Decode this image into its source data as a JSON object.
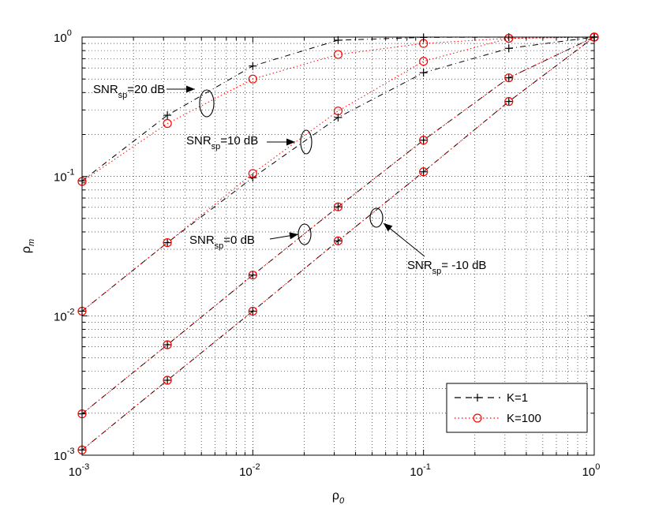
{
  "chart_data": {
    "type": "line",
    "xscale": "log",
    "yscale": "log",
    "xlim": [
      0.001,
      1
    ],
    "ylim": [
      0.001,
      1
    ],
    "grid": true,
    "xlabel": "ρ0",
    "xlabel_base": "ρ",
    "xlabel_sub": "0",
    "ylabel": "ρm",
    "ylabel_base": "ρ",
    "ylabel_sub": "m",
    "xtick_values": [
      0.001,
      0.01,
      0.1,
      1
    ],
    "xtick_labels": [
      {
        "base": "10",
        "exp": "-3"
      },
      {
        "base": "10",
        "exp": "-2"
      },
      {
        "base": "10",
        "exp": "-1"
      },
      {
        "base": "10",
        "exp": "0"
      }
    ],
    "ytick_values": [
      0.001,
      0.01,
      0.1,
      1
    ],
    "ytick_labels": [
      {
        "base": "10",
        "exp": "-3"
      },
      {
        "base": "10",
        "exp": "-2"
      },
      {
        "base": "10",
        "exp": "-1"
      },
      {
        "base": "10",
        "exp": "0"
      }
    ],
    "x": [
      0.001,
      0.00316,
      0.01,
      0.0316,
      0.1,
      0.316,
      1
    ],
    "series": [
      {
        "name": "K=1",
        "style": "dash",
        "marker": "plus",
        "color": "#000000",
        "curves": [
          {
            "snr": "20 dB",
            "values": [
              0.093,
              0.275,
              0.62,
              0.95,
              0.995,
              0.999,
              1.0
            ]
          },
          {
            "snr": "10 dB",
            "values": [
              0.0108,
              0.0335,
              0.098,
              0.265,
              0.555,
              0.83,
              1.0
            ]
          },
          {
            "snr": "0 dB",
            "values": [
              0.00198,
              0.0062,
              0.0196,
              0.0605,
              0.182,
              0.51,
              1.0
            ]
          },
          {
            "snr": "-10 dB",
            "values": [
              0.00109,
              0.00345,
              0.0108,
              0.0345,
              0.108,
              0.345,
              1.0
            ]
          }
        ]
      },
      {
        "name": "K=100",
        "style": "dot",
        "marker": "circle",
        "color": "#ff0000",
        "curves": [
          {
            "snr": "20 dB",
            "values": [
              0.092,
              0.24,
              0.5,
              0.75,
              0.9,
              0.98,
              1.0
            ]
          },
          {
            "snr": "10 dB",
            "values": [
              0.0108,
              0.0335,
              0.105,
              0.295,
              0.67,
              0.98,
              1.0
            ]
          },
          {
            "snr": "0 dB",
            "values": [
              0.00198,
              0.0062,
              0.0196,
              0.0605,
              0.182,
              0.51,
              1.0
            ]
          },
          {
            "snr": "-10 dB",
            "values": [
              0.00109,
              0.00345,
              0.0108,
              0.0345,
              0.108,
              0.345,
              1.0
            ]
          }
        ]
      }
    ],
    "annotations": [
      {
        "id": "snr20",
        "base": "SNR",
        "sub": "sp",
        "rest": "=20 dB",
        "target": [
          0.0053,
          0.34
        ]
      },
      {
        "id": "snr10",
        "base": "SNR",
        "sub": "sp",
        "rest": "=10 dB",
        "target": [
          0.0195,
          0.185
        ]
      },
      {
        "id": "snr0",
        "base": "SNR",
        "sub": "sp",
        "rest": "=0 dB",
        "target": [
          0.02,
          0.04
        ]
      },
      {
        "id": "snrm10",
        "base": "SNR",
        "sub": "sp",
        "rest": "= -10 dB",
        "target": [
          0.053,
          0.05
        ]
      }
    ],
    "legend": {
      "position": "bottom-right",
      "entries": [
        {
          "label": "K=1",
          "style": "dash",
          "marker": "plus",
          "color": "#000000"
        },
        {
          "label": "K=100",
          "style": "dot",
          "marker": "circle",
          "color": "#ff0000"
        }
      ]
    }
  }
}
